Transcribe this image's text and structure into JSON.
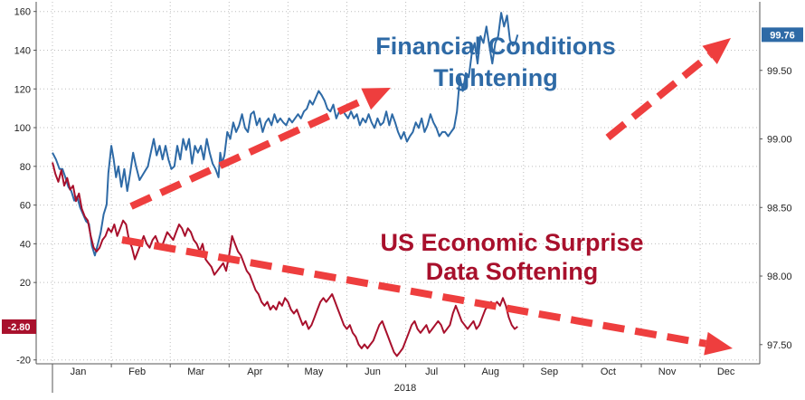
{
  "chart_data": {
    "type": "line",
    "year_label": "2018",
    "x_tick_labels": [
      "Jan",
      "Feb",
      "Mar",
      "Apr",
      "May",
      "Jun",
      "Jul",
      "Aug",
      "Sep",
      "Oct",
      "Nov",
      "Dec"
    ],
    "y_left": {
      "ticks": [
        -20,
        20,
        40,
        60,
        80,
        100,
        120,
        140,
        160
      ],
      "range": [
        -22,
        165
      ]
    },
    "y_right": {
      "ticks": [
        "97.50",
        "98.00",
        "98.50",
        "99.00",
        "99.50"
      ],
      "range": [
        97.36,
        100.0
      ]
    },
    "grid": true,
    "series": [
      {
        "color": "#2e6aa6",
        "axis": "right",
        "last_label": "99.76",
        "values": [
          [
            0.0,
            98.9
          ],
          [
            0.06,
            98.85
          ],
          [
            0.12,
            98.78
          ],
          [
            0.17,
            98.78
          ],
          [
            0.22,
            98.72
          ],
          [
            0.27,
            98.65
          ],
          [
            0.32,
            98.62
          ],
          [
            0.37,
            98.55
          ],
          [
            0.42,
            98.58
          ],
          [
            0.47,
            98.5
          ],
          [
            0.52,
            98.45
          ],
          [
            0.57,
            98.4
          ],
          [
            0.62,
            98.38
          ],
          [
            0.67,
            98.22
          ],
          [
            0.72,
            98.15
          ],
          [
            0.78,
            98.25
          ],
          [
            0.82,
            98.32
          ],
          [
            0.87,
            98.45
          ],
          [
            0.92,
            98.52
          ],
          [
            0.95,
            98.75
          ],
          [
            1.0,
            98.95
          ],
          [
            1.04,
            98.85
          ],
          [
            1.08,
            98.72
          ],
          [
            1.12,
            98.8
          ],
          [
            1.17,
            98.65
          ],
          [
            1.22,
            98.78
          ],
          [
            1.27,
            98.62
          ],
          [
            1.32,
            98.75
          ],
          [
            1.37,
            98.9
          ],
          [
            1.42,
            98.8
          ],
          [
            1.48,
            98.7
          ],
          [
            1.55,
            98.75
          ],
          [
            1.62,
            98.8
          ],
          [
            1.68,
            98.92
          ],
          [
            1.72,
            99.0
          ],
          [
            1.77,
            98.88
          ],
          [
            1.82,
            98.95
          ],
          [
            1.87,
            98.85
          ],
          [
            1.92,
            98.95
          ],
          [
            1.97,
            98.85
          ],
          [
            2.02,
            98.78
          ],
          [
            2.07,
            98.8
          ],
          [
            2.12,
            98.95
          ],
          [
            2.17,
            98.85
          ],
          [
            2.22,
            99.0
          ],
          [
            2.27,
            98.92
          ],
          [
            2.32,
            99.0
          ],
          [
            2.37,
            98.82
          ],
          [
            2.42,
            98.95
          ],
          [
            2.47,
            98.9
          ],
          [
            2.52,
            98.95
          ],
          [
            2.57,
            98.85
          ],
          [
            2.62,
            99.0
          ],
          [
            2.67,
            98.9
          ],
          [
            2.72,
            98.82
          ],
          [
            2.77,
            98.78
          ],
          [
            2.82,
            98.72
          ],
          [
            2.85,
            98.9
          ],
          [
            2.88,
            98.82
          ],
          [
            2.92,
            98.88
          ],
          [
            2.97,
            99.05
          ],
          [
            3.02,
            99.0
          ],
          [
            3.07,
            99.12
          ],
          [
            3.12,
            99.05
          ],
          [
            3.17,
            99.1
          ],
          [
            3.22,
            99.18
          ],
          [
            3.27,
            99.08
          ],
          [
            3.32,
            99.05
          ],
          [
            3.37,
            99.18
          ],
          [
            3.42,
            99.2
          ],
          [
            3.47,
            99.1
          ],
          [
            3.52,
            99.15
          ],
          [
            3.57,
            99.05
          ],
          [
            3.62,
            99.12
          ],
          [
            3.67,
            99.15
          ],
          [
            3.72,
            99.1
          ],
          [
            3.77,
            99.18
          ],
          [
            3.82,
            99.12
          ],
          [
            3.87,
            99.15
          ],
          [
            3.92,
            99.12
          ],
          [
            3.97,
            99.1
          ],
          [
            4.02,
            99.15
          ],
          [
            4.07,
            99.12
          ],
          [
            4.12,
            99.15
          ],
          [
            4.17,
            99.18
          ],
          [
            4.22,
            99.15
          ],
          [
            4.27,
            99.2
          ],
          [
            4.32,
            99.22
          ],
          [
            4.37,
            99.28
          ],
          [
            4.42,
            99.25
          ],
          [
            4.47,
            99.3
          ],
          [
            4.52,
            99.35
          ],
          [
            4.57,
            99.32
          ],
          [
            4.62,
            99.28
          ],
          [
            4.67,
            99.22
          ],
          [
            4.72,
            99.2
          ],
          [
            4.77,
            99.25
          ],
          [
            4.82,
            99.15
          ],
          [
            4.87,
            99.2
          ],
          [
            4.92,
            99.22
          ],
          [
            4.97,
            99.18
          ],
          [
            5.02,
            99.15
          ],
          [
            5.07,
            99.2
          ],
          [
            5.12,
            99.15
          ],
          [
            5.17,
            99.18
          ],
          [
            5.22,
            99.1
          ],
          [
            5.27,
            99.15
          ],
          [
            5.32,
            99.12
          ],
          [
            5.37,
            99.18
          ],
          [
            5.42,
            99.12
          ],
          [
            5.47,
            99.08
          ],
          [
            5.52,
            99.15
          ],
          [
            5.57,
            99.1
          ],
          [
            5.62,
            99.12
          ],
          [
            5.67,
            99.2
          ],
          [
            5.72,
            99.1
          ],
          [
            5.77,
            99.18
          ],
          [
            5.82,
            99.12
          ],
          [
            5.87,
            99.05
          ],
          [
            5.92,
            99.0
          ],
          [
            5.97,
            99.05
          ],
          [
            6.02,
            98.98
          ],
          [
            6.07,
            99.02
          ],
          [
            6.12,
            99.05
          ],
          [
            6.17,
            99.12
          ],
          [
            6.22,
            99.08
          ],
          [
            6.27,
            99.15
          ],
          [
            6.32,
            99.05
          ],
          [
            6.37,
            99.1
          ],
          [
            6.42,
            99.18
          ],
          [
            6.47,
            99.12
          ],
          [
            6.52,
            99.08
          ],
          [
            6.57,
            99.02
          ],
          [
            6.62,
            99.05
          ],
          [
            6.67,
            99.05
          ],
          [
            6.72,
            99.02
          ],
          [
            6.77,
            99.05
          ],
          [
            6.82,
            99.08
          ],
          [
            6.87,
            99.2
          ],
          [
            6.92,
            99.45
          ],
          [
            6.97,
            99.35
          ],
          [
            7.02,
            99.48
          ],
          [
            7.07,
            99.45
          ],
          [
            7.12,
            99.62
          ],
          [
            7.17,
            99.7
          ],
          [
            7.22,
            99.55
          ],
          [
            7.27,
            99.75
          ],
          [
            7.32,
            99.7
          ],
          [
            7.37,
            99.82
          ],
          [
            7.42,
            99.68
          ],
          [
            7.47,
            99.55
          ],
          [
            7.52,
            99.7
          ],
          [
            7.57,
            99.75
          ],
          [
            7.62,
            99.92
          ],
          [
            7.67,
            99.82
          ],
          [
            7.72,
            99.9
          ],
          [
            7.77,
            99.72
          ],
          [
            7.82,
            99.68
          ],
          [
            7.86,
            99.7
          ],
          [
            7.9,
            99.76
          ]
        ]
      },
      {
        "color": "#a8102c",
        "axis": "left",
        "last_label": "-2.80",
        "values": [
          [
            0.0,
            82
          ],
          [
            0.05,
            76
          ],
          [
            0.1,
            72
          ],
          [
            0.15,
            78
          ],
          [
            0.2,
            70
          ],
          [
            0.25,
            74
          ],
          [
            0.3,
            68
          ],
          [
            0.35,
            70
          ],
          [
            0.4,
            62
          ],
          [
            0.45,
            66
          ],
          [
            0.5,
            58
          ],
          [
            0.55,
            54
          ],
          [
            0.6,
            52
          ],
          [
            0.65,
            44
          ],
          [
            0.7,
            38
          ],
          [
            0.75,
            36
          ],
          [
            0.8,
            38
          ],
          [
            0.85,
            42
          ],
          [
            0.9,
            44
          ],
          [
            0.95,
            48
          ],
          [
            1.0,
            46
          ],
          [
            1.05,
            50
          ],
          [
            1.1,
            44
          ],
          [
            1.15,
            48
          ],
          [
            1.2,
            52
          ],
          [
            1.25,
            50
          ],
          [
            1.3,
            42
          ],
          [
            1.35,
            38
          ],
          [
            1.4,
            32
          ],
          [
            1.45,
            36
          ],
          [
            1.5,
            40
          ],
          [
            1.55,
            44
          ],
          [
            1.6,
            40
          ],
          [
            1.65,
            38
          ],
          [
            1.7,
            42
          ],
          [
            1.75,
            44
          ],
          [
            1.8,
            40
          ],
          [
            1.85,
            38
          ],
          [
            1.9,
            42
          ],
          [
            1.95,
            46
          ],
          [
            2.0,
            44
          ],
          [
            2.05,
            42
          ],
          [
            2.1,
            46
          ],
          [
            2.15,
            50
          ],
          [
            2.2,
            48
          ],
          [
            2.25,
            44
          ],
          [
            2.3,
            48
          ],
          [
            2.35,
            46
          ],
          [
            2.4,
            42
          ],
          [
            2.45,
            40
          ],
          [
            2.5,
            36
          ],
          [
            2.55,
            40
          ],
          [
            2.6,
            32
          ],
          [
            2.65,
            30
          ],
          [
            2.7,
            28
          ],
          [
            2.75,
            24
          ],
          [
            2.8,
            26
          ],
          [
            2.85,
            28
          ],
          [
            2.9,
            30
          ],
          [
            2.95,
            26
          ],
          [
            3.0,
            34
          ],
          [
            3.05,
            44
          ],
          [
            3.1,
            40
          ],
          [
            3.15,
            36
          ],
          [
            3.2,
            34
          ],
          [
            3.25,
            30
          ],
          [
            3.3,
            26
          ],
          [
            3.35,
            24
          ],
          [
            3.4,
            20
          ],
          [
            3.45,
            16
          ],
          [
            3.5,
            14
          ],
          [
            3.55,
            10
          ],
          [
            3.6,
            8
          ],
          [
            3.65,
            10
          ],
          [
            3.7,
            6
          ],
          [
            3.75,
            8
          ],
          [
            3.8,
            6
          ],
          [
            3.85,
            10
          ],
          [
            3.9,
            8
          ],
          [
            3.95,
            12
          ],
          [
            4.0,
            10
          ],
          [
            4.05,
            6
          ],
          [
            4.1,
            4
          ],
          [
            4.15,
            6
          ],
          [
            4.2,
            2
          ],
          [
            4.25,
            -2
          ],
          [
            4.3,
            0
          ],
          [
            4.35,
            -4
          ],
          [
            4.4,
            -2
          ],
          [
            4.45,
            2
          ],
          [
            4.5,
            6
          ],
          [
            4.55,
            10
          ],
          [
            4.6,
            12
          ],
          [
            4.65,
            10
          ],
          [
            4.7,
            12
          ],
          [
            4.75,
            14
          ],
          [
            4.8,
            10
          ],
          [
            4.85,
            6
          ],
          [
            4.9,
            2
          ],
          [
            4.95,
            -2
          ],
          [
            5.0,
            -4
          ],
          [
            5.05,
            -2
          ],
          [
            5.1,
            -6
          ],
          [
            5.15,
            -8
          ],
          [
            5.2,
            -12
          ],
          [
            5.25,
            -14
          ],
          [
            5.3,
            -12
          ],
          [
            5.35,
            -14
          ],
          [
            5.4,
            -12
          ],
          [
            5.45,
            -10
          ],
          [
            5.5,
            -6
          ],
          [
            5.55,
            -2
          ],
          [
            5.6,
            0
          ],
          [
            5.65,
            -4
          ],
          [
            5.7,
            -8
          ],
          [
            5.75,
            -12
          ],
          [
            5.8,
            -16
          ],
          [
            5.85,
            -18
          ],
          [
            5.9,
            -16
          ],
          [
            5.95,
            -14
          ],
          [
            6.0,
            -10
          ],
          [
            6.05,
            -6
          ],
          [
            6.1,
            -2
          ],
          [
            6.15,
            0
          ],
          [
            6.2,
            -4
          ],
          [
            6.25,
            -6
          ],
          [
            6.3,
            -4
          ],
          [
            6.35,
            -2
          ],
          [
            6.4,
            -6
          ],
          [
            6.45,
            -4
          ],
          [
            6.5,
            -2
          ],
          [
            6.55,
            0
          ],
          [
            6.6,
            -2
          ],
          [
            6.65,
            -6
          ],
          [
            6.7,
            -4
          ],
          [
            6.75,
            -2
          ],
          [
            6.8,
            4
          ],
          [
            6.85,
            8
          ],
          [
            6.9,
            4
          ],
          [
            6.95,
            0
          ],
          [
            7.0,
            -2
          ],
          [
            7.05,
            -4
          ],
          [
            7.1,
            -2
          ],
          [
            7.15,
            0
          ],
          [
            7.2,
            -4
          ],
          [
            7.25,
            -2
          ],
          [
            7.3,
            2
          ],
          [
            7.35,
            6
          ],
          [
            7.4,
            8
          ],
          [
            7.45,
            10
          ],
          [
            7.5,
            8
          ],
          [
            7.55,
            10
          ],
          [
            7.6,
            8
          ],
          [
            7.65,
            12
          ],
          [
            7.7,
            8
          ],
          [
            7.75,
            2
          ],
          [
            7.8,
            -2
          ],
          [
            7.85,
            -4
          ],
          [
            7.9,
            -2.8
          ]
        ]
      }
    ],
    "annotations": {
      "blue_text": [
        "Financial Conditions",
        "Tightening"
      ],
      "red_text": [
        "US Economic Surprise",
        "Data Softening"
      ]
    }
  }
}
